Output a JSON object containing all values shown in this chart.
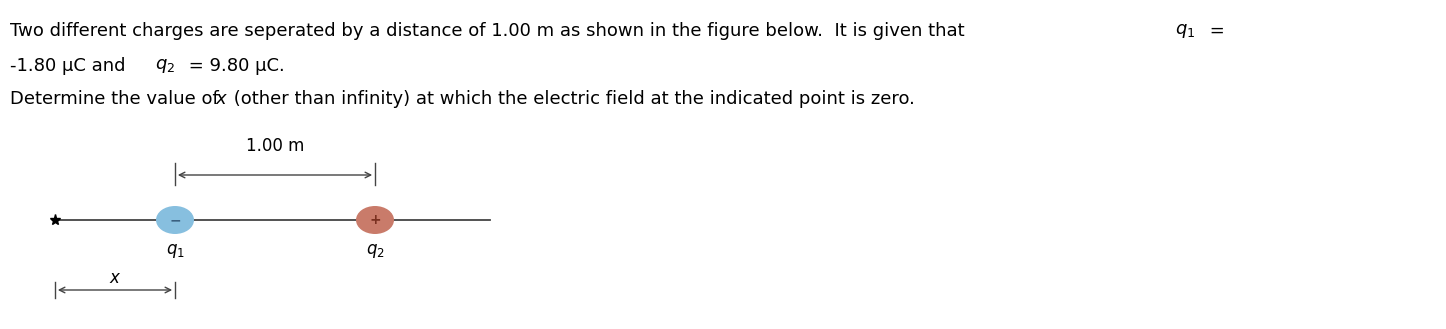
{
  "fig_width": 14.46,
  "fig_height": 3.29,
  "dpi": 100,
  "text_line1a": "Two different charges are seperated by a distance of 1.00 m as shown in the figure below.  It is given that ",
  "text_line1b": " =",
  "text_line2a": "-1.80 μC and ",
  "text_line2b": " = 9.80 μC.",
  "text_line3a": "Determine the value of ",
  "text_line3b": " (other than infinity) at which the electric field at the indicated point is zero.",
  "font_size_body": 13,
  "font_size_diagram": 12,
  "q1_color": "#87BFDF",
  "q2_color": "#C97B6A",
  "line_color": "#444444",
  "dist_label": "1.00 m",
  "label_q1": "$q_1$",
  "label_q2": "$q_2$",
  "q1_sign": "−",
  "q2_sign": "+",
  "x_label": "$x$"
}
